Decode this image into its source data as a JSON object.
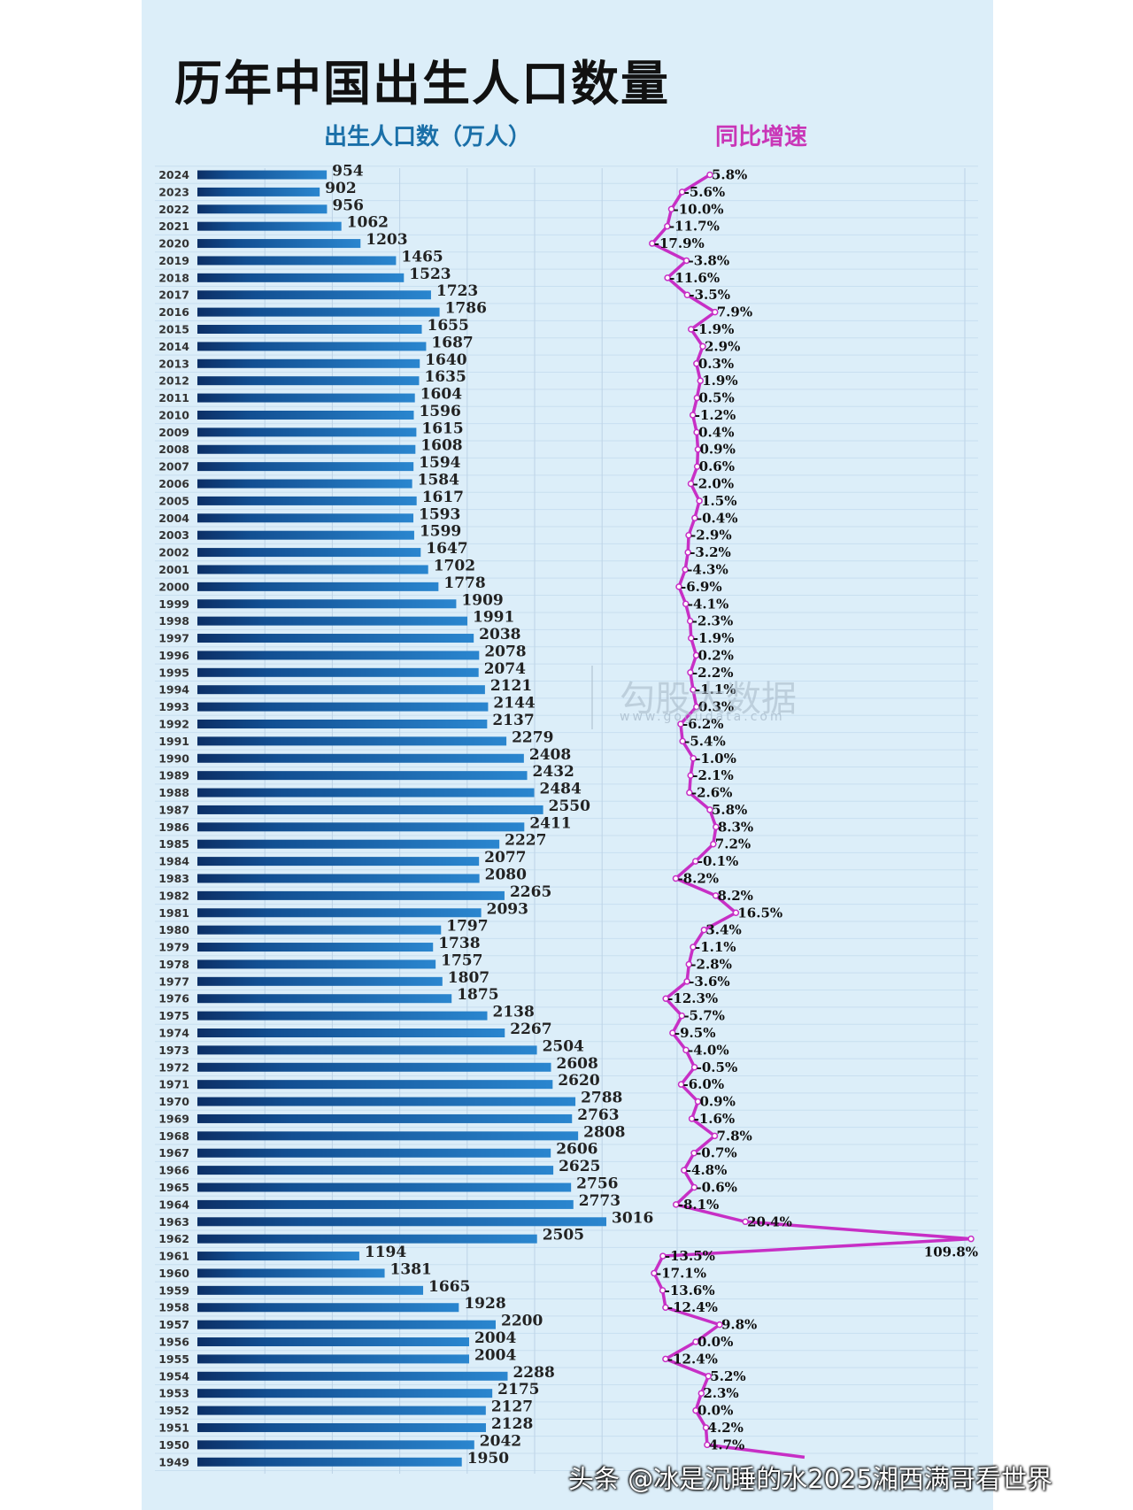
{
  "title": "历年中国出生人口数量",
  "subtitle_left": "出生人口数（万人）",
  "subtitle_right": "同比增速",
  "watermark": {
    "brand": "勾股大数据",
    "url": "www.gogudata.com"
  },
  "credit": "头条 @冰是沉睡的水2025湘西满哥看世界",
  "colors": {
    "bar": "#1a65a8",
    "line": "#c72fc5",
    "panel": "#dceef9"
  },
  "chart_data": [
    {
      "type": "bar",
      "orientation": "horizontal",
      "title": "出生人口数（万人）",
      "categories": [
        "2024",
        "2023",
        "2022",
        "2021",
        "2020",
        "2019",
        "2018",
        "2017",
        "2016",
        "2015",
        "2014",
        "2013",
        "2012",
        "2011",
        "2010",
        "2009",
        "2008",
        "2007",
        "2006",
        "2005",
        "2004",
        "2003",
        "2002",
        "2001",
        "2000",
        "1999",
        "1998",
        "1997",
        "1996",
        "1995",
        "1994",
        "1993",
        "1992",
        "1991",
        "1990",
        "1989",
        "1988",
        "1987",
        "1986",
        "1985",
        "1984",
        "1983",
        "1982",
        "1981",
        "1980",
        "1979",
        "1978",
        "1977",
        "1976",
        "1975",
        "1974",
        "1973",
        "1972",
        "1971",
        "1970",
        "1969",
        "1968",
        "1967",
        "1966",
        "1965",
        "1964",
        "1963",
        "1962",
        "1961",
        "1960",
        "1959",
        "1958",
        "1957",
        "1956",
        "1955",
        "1954",
        "1953",
        "1952",
        "1951",
        "1950",
        "1949"
      ],
      "values": [
        954,
        902,
        956,
        1062,
        1203,
        1465,
        1523,
        1723,
        1786,
        1655,
        1687,
        1640,
        1635,
        1604,
        1596,
        1615,
        1608,
        1594,
        1584,
        1617,
        1593,
        1599,
        1647,
        1702,
        1778,
        1909,
        1991,
        2038,
        2078,
        2074,
        2121,
        2144,
        2137,
        2279,
        2408,
        2432,
        2484,
        2550,
        2411,
        2227,
        2077,
        2080,
        2265,
        2093,
        1797,
        1738,
        1757,
        1807,
        1875,
        2138,
        2267,
        2504,
        2608,
        2620,
        2788,
        2763,
        2808,
        2606,
        2625,
        2756,
        2773,
        3016,
        2505,
        1194,
        1381,
        1665,
        1928,
        2200,
        2004,
        2004,
        2288,
        2175,
        2127,
        2128,
        2042,
        1950
      ],
      "xlim": [
        0,
        3400
      ],
      "grid": true
    },
    {
      "type": "line",
      "title": "同比增速",
      "categories": [
        "2024",
        "2023",
        "2022",
        "2021",
        "2020",
        "2019",
        "2018",
        "2017",
        "2016",
        "2015",
        "2014",
        "2013",
        "2012",
        "2011",
        "2010",
        "2009",
        "2008",
        "2007",
        "2006",
        "2005",
        "2004",
        "2003",
        "2002",
        "2001",
        "2000",
        "1999",
        "1998",
        "1997",
        "1996",
        "1995",
        "1994",
        "1993",
        "1992",
        "1991",
        "1990",
        "1989",
        "1988",
        "1987",
        "1986",
        "1985",
        "1984",
        "1983",
        "1982",
        "1981",
        "1980",
        "1979",
        "1978",
        "1977",
        "1976",
        "1975",
        "1974",
        "1973",
        "1972",
        "1971",
        "1970",
        "1969",
        "1968",
        "1967",
        "1966",
        "1965",
        "1964",
        "1963",
        "1962",
        "1961",
        "1960",
        "1959",
        "1958",
        "1957",
        "1956",
        "1955",
        "1954",
        "1953",
        "1952",
        "1951",
        "1950",
        "1949"
      ],
      "labels": [
        "5.8%",
        "-5.6%",
        "-10.0%",
        "-11.7%",
        "-17.9%",
        "-3.8%",
        "-11.6%",
        "-3.5%",
        "7.9%",
        "-1.9%",
        "2.9%",
        "0.3%",
        "1.9%",
        "0.5%",
        "-1.2%",
        "0.4%",
        "0.9%",
        "0.6%",
        "-2.0%",
        "1.5%",
        "-0.4%",
        "-2.9%",
        "-3.2%",
        "-4.3%",
        "-6.9%",
        "-4.1%",
        "-2.3%",
        "-1.9%",
        "0.2%",
        "-2.2%",
        "-1.1%",
        "0.3%",
        "-6.2%",
        "-5.4%",
        "-1.0%",
        "-2.1%",
        "-2.6%",
        "5.8%",
        "8.3%",
        "7.2%",
        "-0.1%",
        "-8.2%",
        "8.2%",
        "16.5%",
        "3.4%",
        "-1.1%",
        "-2.8%",
        "-3.6%",
        "-12.3%",
        "-5.7%",
        "-9.5%",
        "-4.0%",
        "-0.5%",
        "-6.0%",
        "0.9%",
        "-1.6%",
        "7.8%",
        "-0.7%",
        "-4.8%",
        "-0.6%",
        "-8.1%",
        "20.4%",
        "109.8%",
        "-13.5%",
        "-17.1%",
        "-13.6%",
        "-12.4%",
        "9.8%",
        "0.0%",
        "-12.4%",
        "5.2%",
        "2.3%",
        "0.0%",
        "4.2%",
        "4.7%",
        ""
      ],
      "values": [
        5.8,
        -5.6,
        -10.0,
        -11.7,
        -17.9,
        -3.8,
        -11.6,
        -3.5,
        7.9,
        -1.9,
        2.9,
        0.3,
        1.9,
        0.5,
        -1.2,
        0.4,
        0.9,
        0.6,
        -2.0,
        1.5,
        -0.4,
        -2.9,
        -3.2,
        -4.3,
        -6.9,
        -4.1,
        -2.3,
        -1.9,
        0.2,
        -2.2,
        -1.1,
        0.3,
        -6.2,
        -5.4,
        -1.0,
        -2.1,
        -2.6,
        5.8,
        8.3,
        7.2,
        -0.1,
        -8.2,
        8.2,
        16.5,
        3.4,
        -1.1,
        -2.8,
        -3.6,
        -12.3,
        -5.7,
        -9.5,
        -4.0,
        -0.5,
        -6.0,
        0.9,
        -1.6,
        7.8,
        -0.7,
        -4.8,
        -0.6,
        -8.1,
        20.4,
        109.8,
        -13.5,
        -17.1,
        -13.6,
        -12.4,
        9.8,
        0.0,
        -12.4,
        5.2,
        2.3,
        0.0,
        4.2,
        4.7,
        null
      ]
    }
  ]
}
